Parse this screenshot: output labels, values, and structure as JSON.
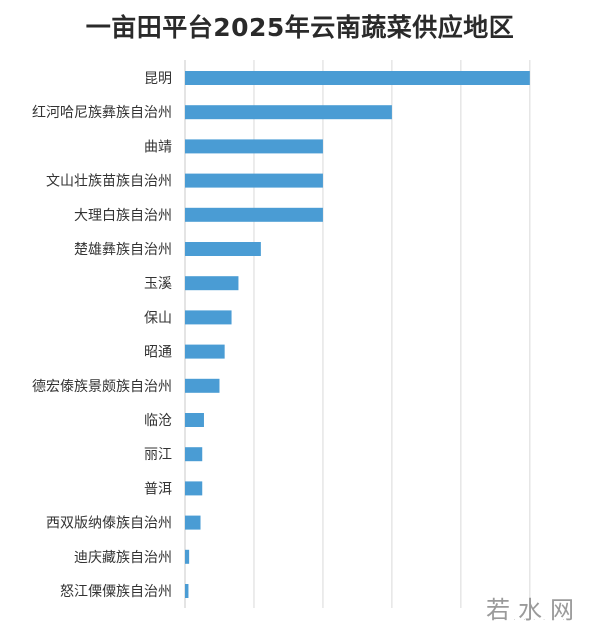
{
  "title": "一亩田平台2025年云南蔬菜供应地区",
  "watermark": "若水网",
  "watermark_sub": "· · · · · · · ·",
  "chart_data": {
    "type": "bar",
    "orientation": "horizontal",
    "title": "一亩田平台2025年云南蔬菜供应地区",
    "xlabel": "",
    "ylabel": "",
    "categories": [
      "昆明",
      "红河哈尼族彝族自治州",
      "曲靖",
      "文山壮族苗族自治州",
      "大理白族自治州",
      "楚雄彝族自治州",
      "玉溪",
      "保山",
      "昭通",
      "德宏傣族景颇族自治州",
      "临沧",
      "丽江",
      "普洱",
      "西双版纳傣族自治州",
      "迪庆藏族自治州",
      "怒江傈僳族自治州"
    ],
    "values": [
      100,
      60,
      40,
      40,
      40,
      22,
      15.5,
      13.5,
      11.5,
      10,
      5.5,
      5,
      5,
      4.5,
      1.2,
      1
    ],
    "xlim": [
      0,
      116
    ],
    "grid": true,
    "bar_color": "#4a9cd4",
    "grid_color": "#d9d9d9"
  }
}
